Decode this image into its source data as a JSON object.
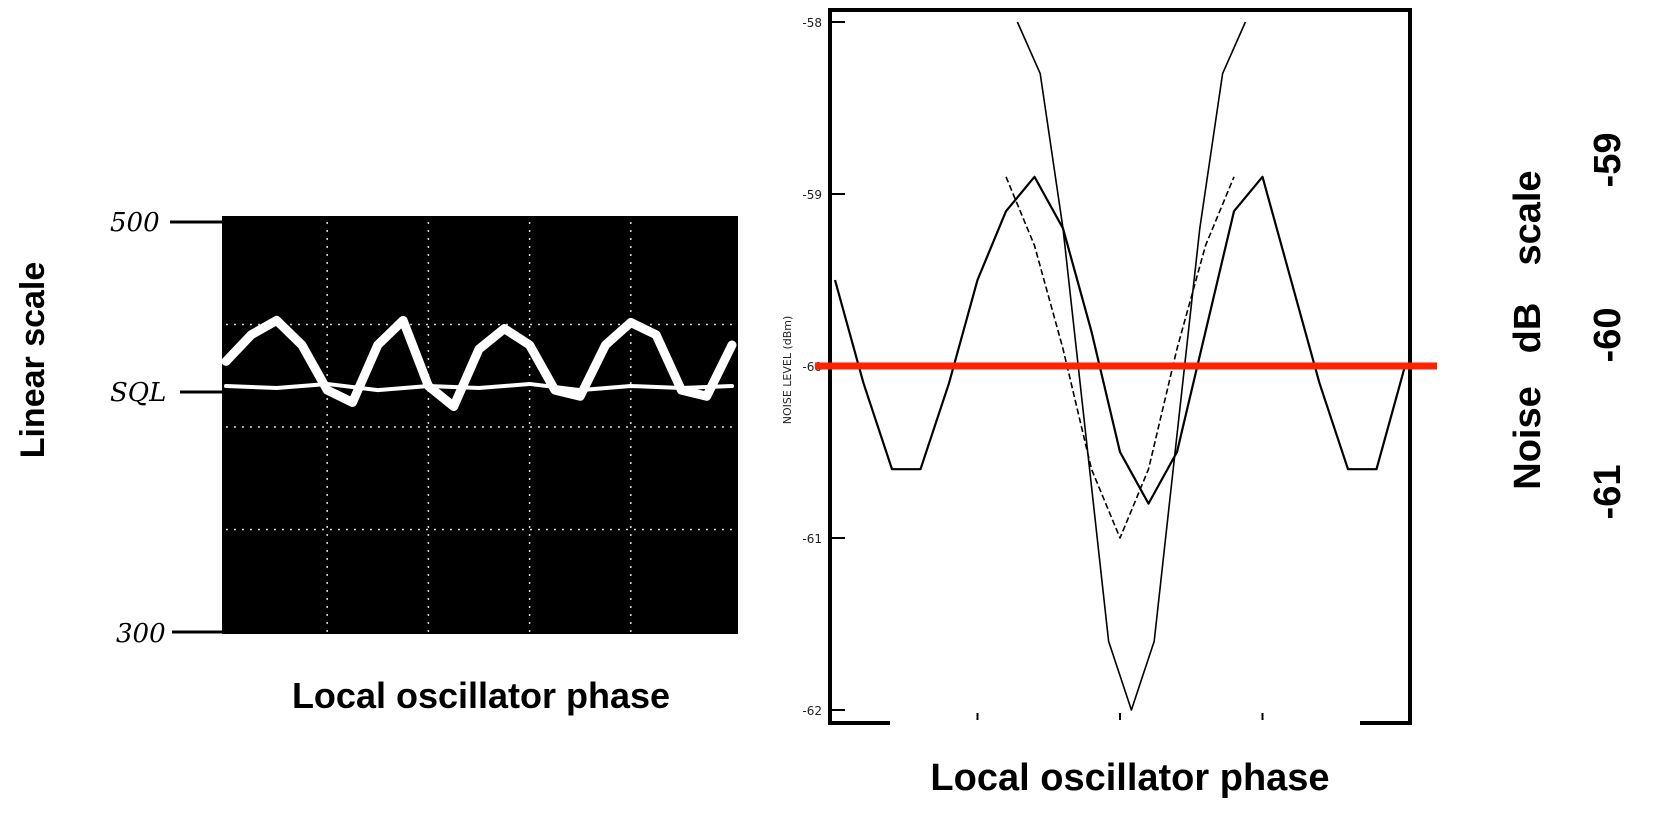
{
  "left_panel": {
    "ylabel": "Linear scale",
    "xlabel": "Local oscillator phase",
    "tick_labels": [
      "500",
      "SQL",
      "300"
    ]
  },
  "right_panel": {
    "ylabel_inner": "NOISE LEVEL (dBm)",
    "xlabel": "Local oscillator phase",
    "tick_labels": [
      "-58",
      "-59",
      "-60",
      "-61",
      "-62"
    ],
    "side_label": {
      "title": "Noise",
      "unit": "dB",
      "word": "scale"
    },
    "side_ticks": [
      "-59",
      "-60",
      "-61"
    ]
  },
  "colors": {
    "reference_line": "#ff2200",
    "screen": "#000000",
    "trace": "#ffffff"
  },
  "chart_data": [
    {
      "type": "line",
      "panel": "left",
      "title": "",
      "xlabel": "Local oscillator phase",
      "ylabel": "Linear scale",
      "ylim": [
        300,
        500
      ],
      "y_ticks": [
        {
          "label": "500",
          "value": 500
        },
        {
          "label": "SQL",
          "value": 420
        },
        {
          "label": "300",
          "value": 300
        }
      ],
      "grid": true,
      "series": [
        {
          "x": [
            0,
            0.5,
            1,
            1.5,
            2,
            2.5,
            3,
            3.5,
            4,
            4.5,
            5,
            5.5,
            6,
            6.5,
            7,
            7.5,
            8,
            8.5,
            9,
            9.5,
            10
          ],
          "values": [
            432,
            445,
            452,
            440,
            418,
            412,
            440,
            452,
            420,
            410,
            438,
            448,
            440,
            418,
            415,
            440,
            451,
            445,
            418,
            415,
            440
          ]
        },
        {
          "x": [
            0,
            1,
            2,
            3,
            4,
            5,
            6,
            7,
            8,
            9,
            10
          ],
          "values": [
            420,
            419,
            421,
            418,
            420,
            419,
            421,
            418,
            420,
            419,
            420
          ]
        }
      ]
    },
    {
      "type": "line",
      "panel": "right",
      "title": "",
      "xlabel": "Local oscillator phase",
      "ylabel": "NOISE LEVEL (dBm)",
      "ylim": [
        -62,
        -58
      ],
      "y_ticks": [
        -58,
        -59,
        -60,
        -61,
        -62
      ],
      "reference_line": -60,
      "series": [
        {
          "x": [
            0,
            0.5,
            1,
            1.5,
            2,
            2.5,
            3,
            3.5,
            4,
            4.5,
            5,
            5.5,
            6,
            6.5,
            7,
            7.5,
            8,
            8.5,
            9,
            9.5,
            10
          ],
          "values": [
            -59.5,
            -60.1,
            -60.6,
            -60.6,
            -60.1,
            -59.5,
            -59.1,
            -58.9,
            -59.2,
            -59.8,
            -60.5,
            -60.8,
            -60.5,
            -59.8,
            -59.1,
            -58.9,
            -59.5,
            -60.1,
            -60.6,
            -60.6,
            -60.0
          ]
        },
        {
          "x": [
            3.2,
            3.6,
            4,
            4.4,
            4.8,
            5.2,
            5.6,
            6,
            6.4,
            6.8,
            7.2
          ],
          "values": [
            -58.0,
            -58.3,
            -59.2,
            -60.4,
            -61.6,
            -62.0,
            -61.6,
            -60.4,
            -59.2,
            -58.3,
            -58.0
          ]
        },
        {
          "x": [
            3,
            3.5,
            4,
            4.5,
            5,
            5.5,
            6,
            6.5,
            7
          ],
          "values": [
            -58.9,
            -59.3,
            -59.9,
            -60.6,
            -61.0,
            -60.6,
            -59.9,
            -59.3,
            -58.9
          ]
        }
      ]
    }
  ]
}
